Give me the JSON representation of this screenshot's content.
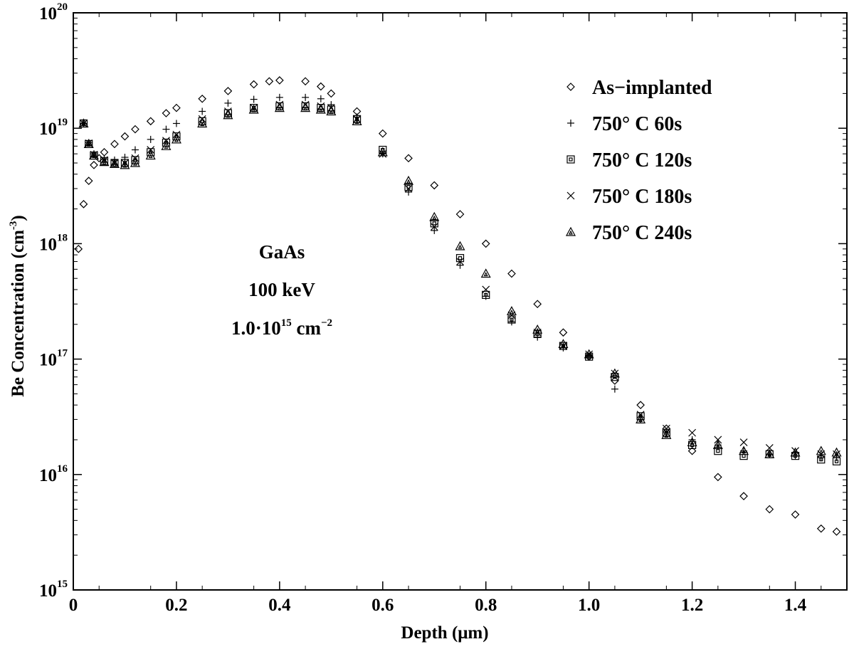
{
  "chart_data": {
    "type": "scatter",
    "title": "",
    "xlabel": "Depth (μm)",
    "ylabel": "Be Concentration (cm",
    "ylabel_sup": "-3",
    "ylabel_close": ")",
    "xlim": [
      0,
      1.5
    ],
    "ylim_exp": [
      15,
      20
    ],
    "yscale": "log",
    "x_ticks": [
      0,
      0.2,
      0.4,
      0.6,
      0.8,
      1.0,
      1.2,
      1.4
    ],
    "x_tick_labels": [
      "0",
      "0.2",
      "0.4",
      "0.6",
      "0.8",
      "1.0",
      "1.2",
      "1.4"
    ],
    "y_ticks": [
      15,
      16,
      17,
      18,
      19,
      20
    ],
    "y_tick_labels": [
      {
        "base": "10",
        "exp": "15"
      },
      {
        "base": "10",
        "exp": "16"
      },
      {
        "base": "10",
        "exp": "17"
      },
      {
        "base": "10",
        "exp": "18"
      },
      {
        "base": "10",
        "exp": "19"
      },
      {
        "base": "10",
        "exp": "20"
      }
    ],
    "annotation": {
      "line1": "GaAs",
      "line2": "100 keV",
      "line3_prefix": "1.0·10",
      "line3_exp": "15",
      "line3_unit": " cm",
      "line3_unit_exp": "−2"
    },
    "legend_position": "top-right",
    "series": [
      {
        "name": "As−implanted",
        "marker": "diamond",
        "x": [
          0.01,
          0.02,
          0.03,
          0.04,
          0.05,
          0.06,
          0.08,
          0.1,
          0.12,
          0.15,
          0.18,
          0.2,
          0.25,
          0.3,
          0.35,
          0.38,
          0.4,
          0.45,
          0.48,
          0.5,
          0.55,
          0.6,
          0.65,
          0.7,
          0.75,
          0.8,
          0.85,
          0.9,
          0.95,
          1.0,
          1.05,
          1.1,
          1.15,
          1.2,
          1.25,
          1.3,
          1.35,
          1.4,
          1.45,
          1.48
        ],
        "y": [
          9e+17,
          2.2e+18,
          3.5e+18,
          4.8e+18,
          5.5e+18,
          6.2e+18,
          7.3e+18,
          8.5e+18,
          9.8e+18,
          1.15e+19,
          1.35e+19,
          1.5e+19,
          1.8e+19,
          2.1e+19,
          2.4e+19,
          2.55e+19,
          2.6e+19,
          2.55e+19,
          2.3e+19,
          2e+19,
          1.4e+19,
          9e+18,
          5.5e+18,
          3.2e+18,
          1.8e+18,
          1e+18,
          5.5e+17,
          3e+17,
          1.7e+17,
          1.05e+17,
          6.5e+16,
          4e+16,
          2.5e+16,
          1.6e+16,
          9500000000000000.0,
          6500000000000000.0,
          5000000000000000.0,
          4500000000000000.0,
          3400000000000000.0,
          3200000000000000.0
        ]
      },
      {
        "name": "750° C 60s",
        "marker": "plus",
        "x": [
          0.02,
          0.03,
          0.04,
          0.06,
          0.08,
          0.1,
          0.12,
          0.15,
          0.18,
          0.2,
          0.25,
          0.3,
          0.35,
          0.4,
          0.45,
          0.48,
          0.5,
          0.55,
          0.6,
          0.65,
          0.7,
          0.75,
          0.8,
          0.85,
          0.9,
          0.95,
          1.0,
          1.05,
          1.1,
          1.15,
          1.2,
          1.25,
          1.3,
          1.35,
          1.4,
          1.45,
          1.48
        ],
        "y": [
          1.1e+19,
          7.5e+18,
          6e+18,
          5.4e+18,
          5.3e+18,
          5.6e+18,
          6.5e+18,
          8e+18,
          9.8e+18,
          1.1e+19,
          1.4e+19,
          1.65e+19,
          1.78e+19,
          1.85e+19,
          1.85e+19,
          1.8e+19,
          1.6e+19,
          1.25e+19,
          6e+18,
          2.8e+18,
          1.3e+18,
          6.5e+17,
          3.5e+17,
          2.1e+17,
          1.55e+17,
          1.25e+17,
          1.05e+17,
          5.5e+16,
          3e+16,
          2.3e+16,
          2e+16,
          1.8e+16,
          1.6e+16,
          1.5e+16,
          1.45e+16,
          1.4e+16,
          1.4e+16
        ]
      },
      {
        "name": "750° C 120s",
        "marker": "square",
        "x": [
          0.02,
          0.03,
          0.04,
          0.06,
          0.08,
          0.1,
          0.12,
          0.15,
          0.18,
          0.2,
          0.25,
          0.3,
          0.35,
          0.4,
          0.45,
          0.48,
          0.5,
          0.55,
          0.6,
          0.65,
          0.7,
          0.75,
          0.8,
          0.85,
          0.9,
          0.95,
          1.0,
          1.05,
          1.1,
          1.15,
          1.2,
          1.25,
          1.3,
          1.35,
          1.4,
          1.45,
          1.48
        ],
        "y": [
          1.1e+19,
          7.3e+18,
          5.8e+18,
          5.2e+18,
          5e+18,
          5e+18,
          5.3e+18,
          6.2e+18,
          7.5e+18,
          8.5e+18,
          1.15e+19,
          1.35e+19,
          1.5e+19,
          1.55e+19,
          1.55e+19,
          1.5e+19,
          1.45e+19,
          1.2e+19,
          6.5e+18,
          3.1e+18,
          1.5e+18,
          7.5e+17,
          3.6e+17,
          2.2e+17,
          1.65e+17,
          1.3e+17,
          1.05e+17,
          7e+16,
          3.2e+16,
          2.3e+16,
          1.8e+16,
          1.6e+16,
          1.45e+16,
          1.5e+16,
          1.45e+16,
          1.35e+16,
          1.3e+16
        ]
      },
      {
        "name": "750° C 180s",
        "marker": "cross",
        "x": [
          0.02,
          0.03,
          0.04,
          0.06,
          0.08,
          0.1,
          0.12,
          0.15,
          0.18,
          0.2,
          0.25,
          0.3,
          0.35,
          0.4,
          0.45,
          0.48,
          0.5,
          0.55,
          0.6,
          0.65,
          0.7,
          0.75,
          0.8,
          0.85,
          0.9,
          0.95,
          1.0,
          1.05,
          1.1,
          1.15,
          1.2,
          1.25,
          1.3,
          1.35,
          1.4,
          1.45,
          1.48
        ],
        "y": [
          1.1e+19,
          7.4e+18,
          5.9e+18,
          5.3e+18,
          5e+18,
          5e+18,
          5.5e+18,
          6.5e+18,
          7.8e+18,
          8.8e+18,
          1.2e+19,
          1.4e+19,
          1.5e+19,
          1.6e+19,
          1.6e+19,
          1.55e+19,
          1.5e+19,
          1.2e+19,
          6e+18,
          3e+18,
          1.4e+18,
          7e+17,
          4e+17,
          2.4e+17,
          1.7e+17,
          1.3e+17,
          1.1e+17,
          7.5e+16,
          3.3e+16,
          2.5e+16,
          2.3e+16,
          2e+16,
          1.9e+16,
          1.7e+16,
          1.6e+16,
          1.5e+16,
          1.5e+16
        ]
      },
      {
        "name": "750° C 240s",
        "marker": "triangle",
        "x": [
          0.02,
          0.03,
          0.04,
          0.06,
          0.08,
          0.1,
          0.12,
          0.15,
          0.18,
          0.2,
          0.25,
          0.3,
          0.35,
          0.4,
          0.45,
          0.48,
          0.5,
          0.55,
          0.6,
          0.65,
          0.7,
          0.75,
          0.8,
          0.85,
          0.9,
          0.95,
          1.0,
          1.05,
          1.1,
          1.15,
          1.2,
          1.25,
          1.3,
          1.35,
          1.4,
          1.45,
          1.48
        ],
        "y": [
          1.1e+19,
          7.3e+18,
          5.8e+18,
          5.1e+18,
          4.9e+18,
          4.8e+18,
          5e+18,
          5.8e+18,
          7e+18,
          8e+18,
          1.1e+19,
          1.3e+19,
          1.45e+19,
          1.5e+19,
          1.5e+19,
          1.45e+19,
          1.4e+19,
          1.15e+19,
          6.2e+18,
          3.5e+18,
          1.7e+18,
          9.5e+17,
          5.5e+17,
          2.6e+17,
          1.8e+17,
          1.35e+17,
          1.1e+17,
          7.5e+16,
          3e+16,
          2.2e+16,
          1.9e+16,
          1.8e+16,
          1.6e+16,
          1.5e+16,
          1.55e+16,
          1.6e+16,
          1.55e+16
        ]
      }
    ]
  }
}
